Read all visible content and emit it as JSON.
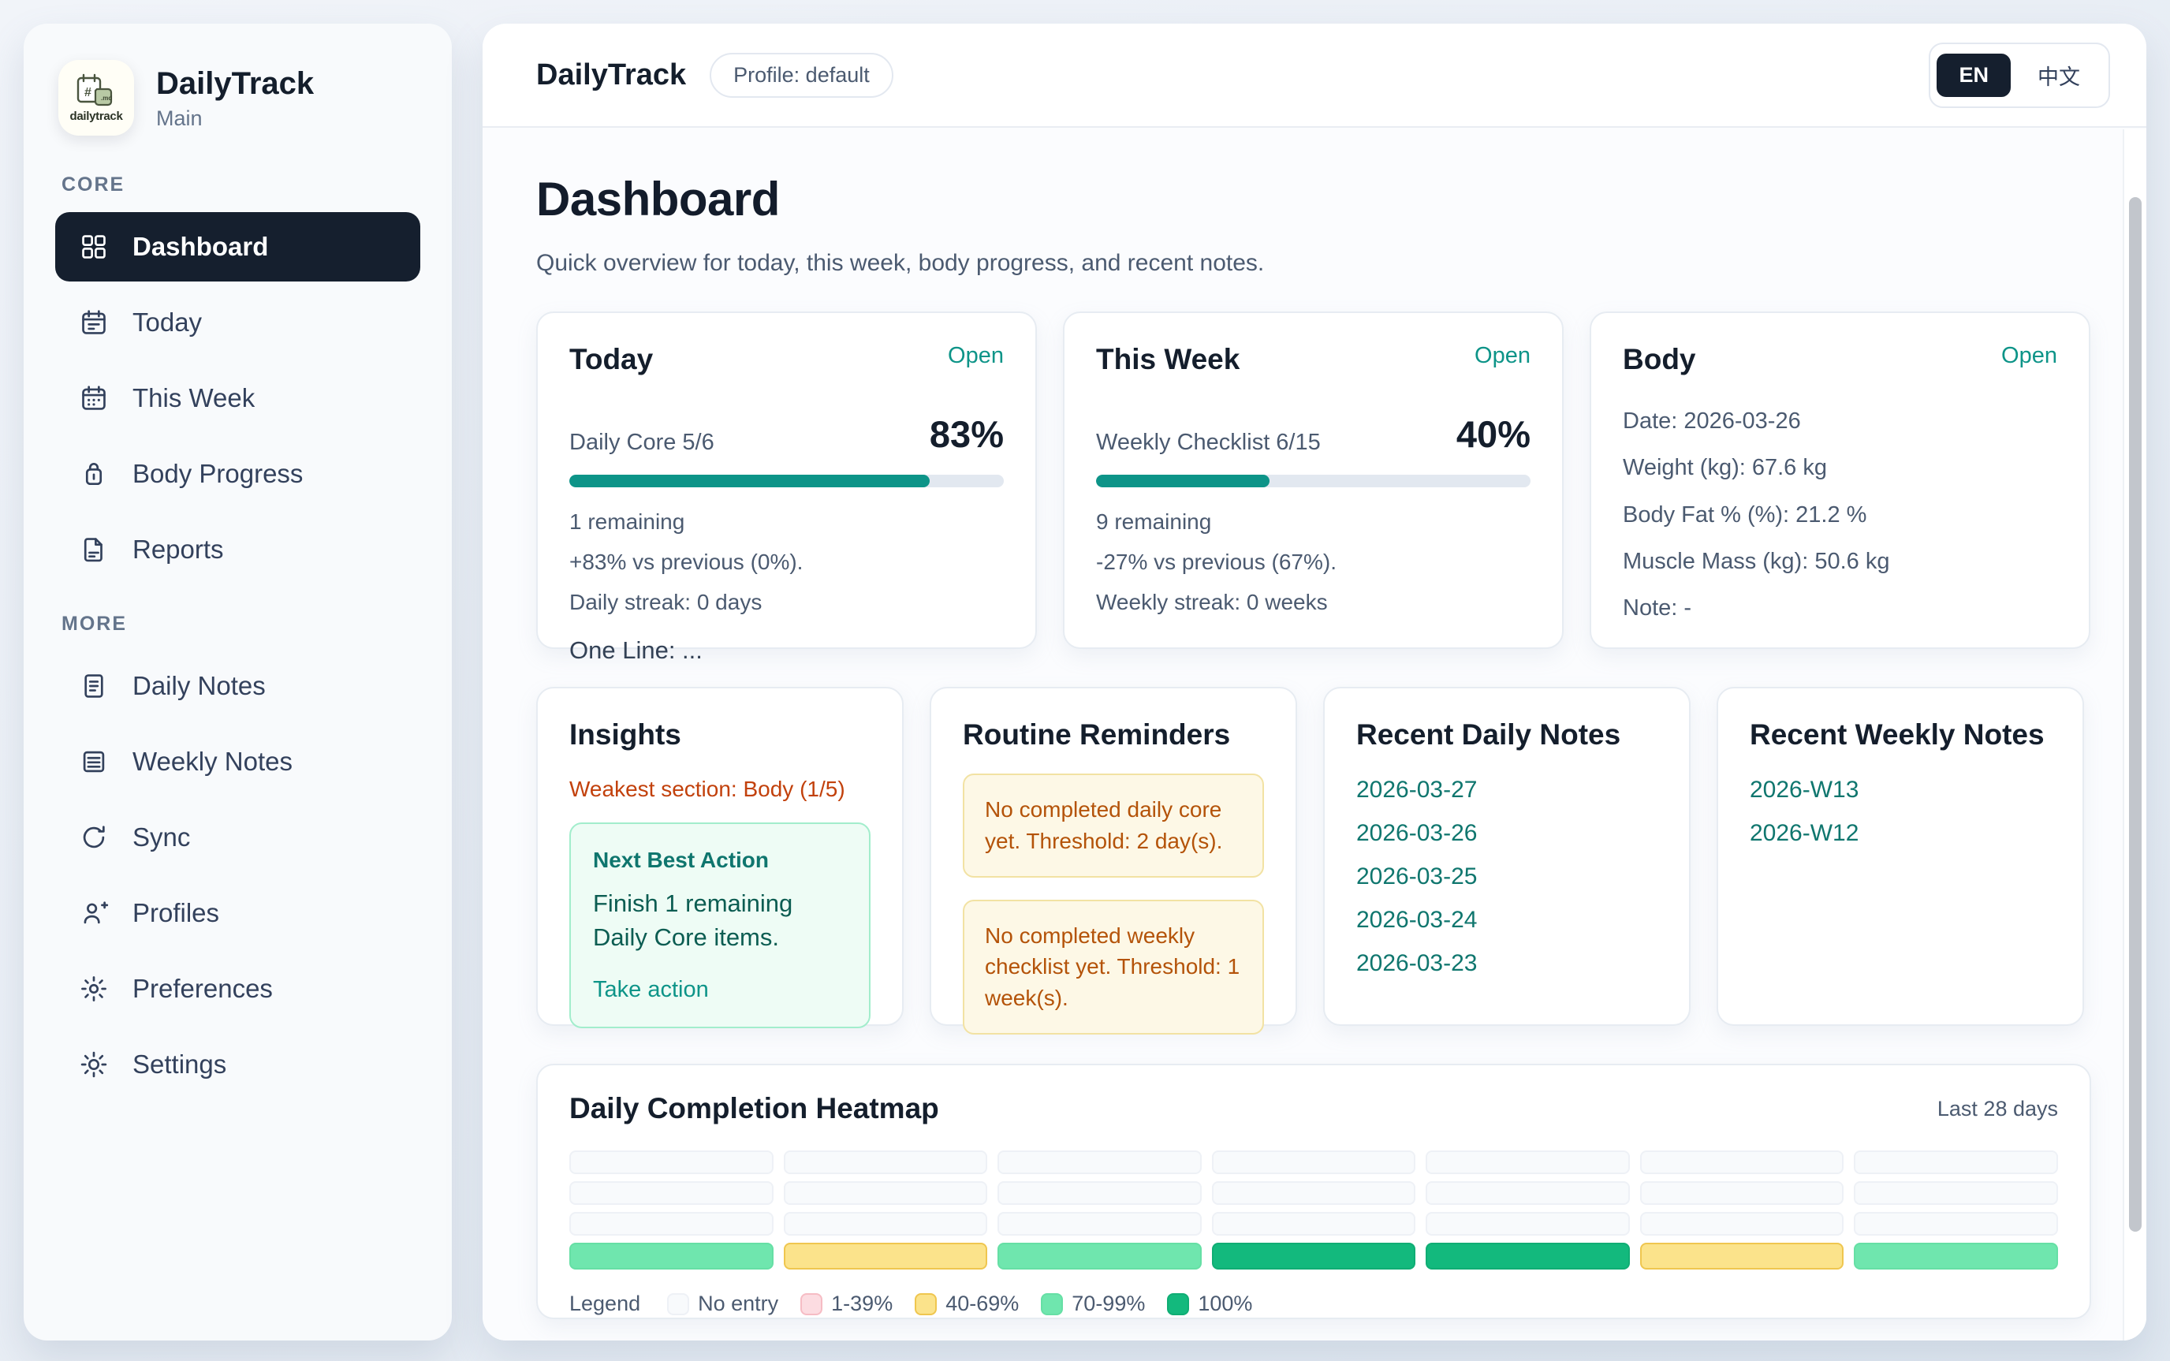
{
  "app": {
    "name": "DailyTrack",
    "workspace": "Main",
    "profile_badge": "Profile: default"
  },
  "language_toggle": {
    "en": "EN",
    "zh": "中文",
    "active": "EN"
  },
  "sidebar": {
    "sections": [
      {
        "label": "CORE",
        "items": [
          {
            "label": "Dashboard",
            "icon": "grid",
            "active": true
          },
          {
            "label": "Today",
            "icon": "calendar",
            "active": false
          },
          {
            "label": "This Week",
            "icon": "calendar-week",
            "active": false
          },
          {
            "label": "Body Progress",
            "icon": "scale",
            "active": false
          },
          {
            "label": "Reports",
            "icon": "document",
            "active": false
          }
        ]
      },
      {
        "label": "MORE",
        "items": [
          {
            "label": "Daily Notes",
            "icon": "note",
            "active": false
          },
          {
            "label": "Weekly Notes",
            "icon": "notebook",
            "active": false
          },
          {
            "label": "Sync",
            "icon": "refresh",
            "active": false
          },
          {
            "label": "Profiles",
            "icon": "user-plus",
            "active": false
          },
          {
            "label": "Preferences",
            "icon": "gear",
            "active": false
          },
          {
            "label": "Settings",
            "icon": "sun",
            "active": false
          }
        ]
      }
    ]
  },
  "page": {
    "title": "Dashboard",
    "subtitle": "Quick overview for today, this week, body progress, and recent notes."
  },
  "cards": {
    "today": {
      "title": "Today",
      "action": "Open",
      "metric_label": "Daily Core 5/6",
      "percent": "83%",
      "progress": 83,
      "lines": [
        "1 remaining",
        "+83% vs previous (0%).",
        "Daily streak: 0 days"
      ],
      "one_line": "One Line: ..."
    },
    "week": {
      "title": "This Week",
      "action": "Open",
      "metric_label": "Weekly Checklist 6/15",
      "percent": "40%",
      "progress": 40,
      "lines": [
        "9 remaining",
        "-27% vs previous (67%).",
        "Weekly streak: 0 weeks"
      ]
    },
    "body": {
      "title": "Body",
      "action": "Open",
      "lines": [
        "Date: 2026-03-26",
        "Weight (kg): 67.6 kg",
        "Body Fat % (%): 21.2 %",
        "Muscle Mass (kg): 50.6 kg",
        "Note: -"
      ]
    },
    "insights": {
      "title": "Insights",
      "weakest": "Weakest section: Body (1/5)",
      "next_best_title": "Next Best Action",
      "next_best_text": "Finish 1 remaining Daily Core items.",
      "action": "Take action"
    },
    "reminders": {
      "title": "Routine Reminders",
      "items": [
        "No completed daily core yet. Threshold: 2 day(s).",
        "No completed weekly checklist yet. Threshold: 1 week(s)."
      ]
    },
    "daily_notes": {
      "title": "Recent Daily Notes",
      "items": [
        "2026-03-27",
        "2026-03-26",
        "2026-03-25",
        "2026-03-24",
        "2026-03-23"
      ]
    },
    "weekly_notes": {
      "title": "Recent Weekly Notes",
      "items": [
        "2026-W13",
        "2026-W12"
      ]
    }
  },
  "heatmap": {
    "title": "Daily Completion Heatmap",
    "range_label": "Last 28 days",
    "legend_label": "Legend",
    "legend": [
      {
        "label": "No entry",
        "key": "none",
        "color": "#f8fafc"
      },
      {
        "label": "1-39%",
        "key": "1-39",
        "color": "#fcdce1"
      },
      {
        "label": "40-69%",
        "key": "40-69",
        "color": "#fbe38b"
      },
      {
        "label": "70-99%",
        "key": "70-99",
        "color": "#6fe6ae"
      },
      {
        "label": "100%",
        "key": "100",
        "color": "#13b97d"
      }
    ],
    "rows": [
      [
        "none",
        "none",
        "none",
        "none",
        "none",
        "none",
        "none"
      ],
      [
        "none",
        "none",
        "none",
        "none",
        "none",
        "none",
        "none"
      ],
      [
        "none",
        "none",
        "none",
        "none",
        "none",
        "none",
        "none"
      ],
      [
        "70-99",
        "40-69",
        "70-99",
        "100",
        "100",
        "40-69",
        "70-99"
      ]
    ]
  },
  "colors": {
    "accent_teal": "#0d9488",
    "link_teal": "#0f766e",
    "warn_text": "#b45309",
    "weakest_orange": "#c2410c",
    "active_nav": "#151f2e"
  }
}
